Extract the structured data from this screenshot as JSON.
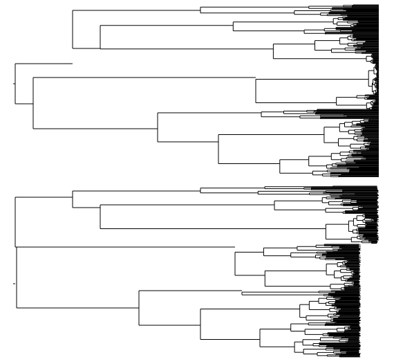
{
  "figure": {
    "type": "phylogenetic-trees",
    "orientation": "root-left",
    "colors": {
      "background": "#ffffff",
      "branch": "#000000"
    },
    "trees": [
      {
        "name": "upper-tree",
        "tips_at_uniform_depth": true,
        "approximate_leaf_count": 300,
        "seed": 17
      },
      {
        "name": "lower-tree",
        "tips_at_uniform_depth": false,
        "approximate_leaf_count": 300,
        "seed": 91
      }
    ]
  }
}
